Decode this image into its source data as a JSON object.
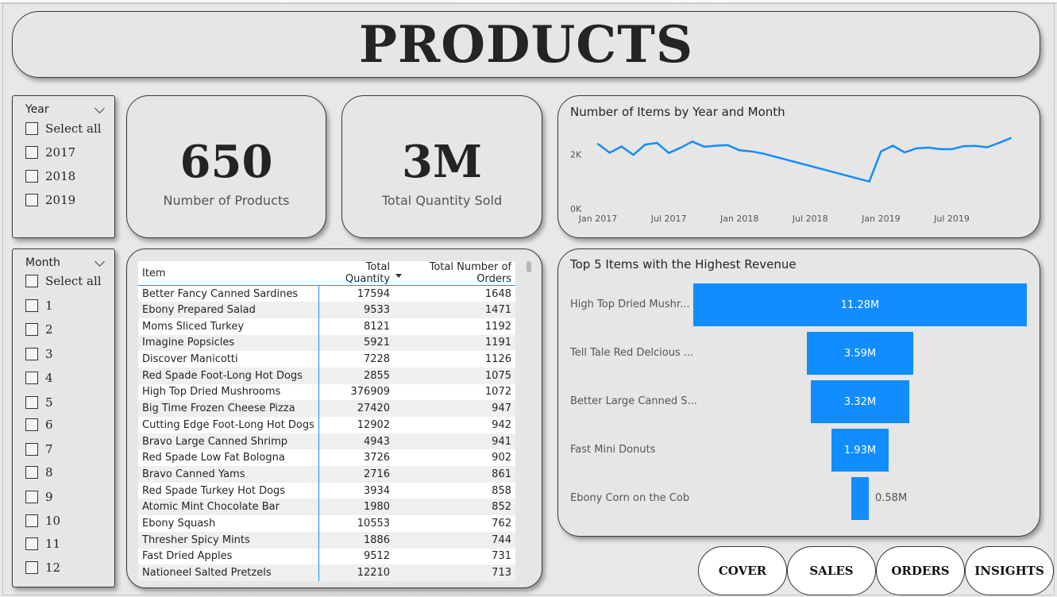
{
  "title": "PRODUCTS",
  "year_slicer": {
    "label": "Year",
    "options": [
      "Select all",
      "2017",
      "2018",
      "2019"
    ]
  },
  "month_slicer": {
    "label": "Month",
    "options": [
      "Select all",
      "1",
      "2",
      "3",
      "4",
      "5",
      "6",
      "7",
      "8",
      "9",
      "10",
      "11",
      "12"
    ]
  },
  "kpis": {
    "products": {
      "value": "650",
      "label": "Number of Products"
    },
    "quantity": {
      "value": "3M",
      "label": "Total Quantity Sold"
    }
  },
  "line_chart": {
    "title": "Number of Items by Year and Month",
    "y_ticks": [
      "0K",
      "2K"
    ],
    "x_ticks": [
      "Jan 2017",
      "Jul 2017",
      "Jan 2018",
      "Jul 2018",
      "Jan 2019",
      "Jul 2019"
    ]
  },
  "table": {
    "columns": [
      "Item",
      "Total Quantity",
      "Total Number of Orders"
    ],
    "rows": [
      [
        "Better Fancy Canned Sardines",
        "17594",
        "1648"
      ],
      [
        "Ebony Prepared Salad",
        "9533",
        "1471"
      ],
      [
        "Moms Sliced Turkey",
        "8121",
        "1192"
      ],
      [
        "Imagine Popsicles",
        "5921",
        "1191"
      ],
      [
        "Discover Manicotti",
        "7228",
        "1126"
      ],
      [
        "Red Spade Foot-Long Hot Dogs",
        "2855",
        "1075"
      ],
      [
        "High Top Dried Mushrooms",
        "376909",
        "1072"
      ],
      [
        "Big Time Frozen Cheese Pizza",
        "27420",
        "947"
      ],
      [
        "Cutting Edge Foot-Long Hot Dogs",
        "12902",
        "942"
      ],
      [
        "Bravo Large Canned Shrimp",
        "4943",
        "941"
      ],
      [
        "Red Spade Low Fat Bologna",
        "3726",
        "902"
      ],
      [
        "Bravo Canned Yams",
        "2716",
        "861"
      ],
      [
        "Red Spade Turkey Hot Dogs",
        "3934",
        "858"
      ],
      [
        "Atomic Mint Chocolate Bar",
        "1980",
        "852"
      ],
      [
        "Ebony Squash",
        "10553",
        "762"
      ],
      [
        "Thresher Spicy Mints",
        "1886",
        "744"
      ],
      [
        "Fast Dried Apples",
        "9512",
        "731"
      ],
      [
        "Nationeel Salted Pretzels",
        "12210",
        "713"
      ]
    ]
  },
  "bar_chart": {
    "title": "Top 5 Items with the Highest Revenue",
    "items": [
      {
        "label": "High Top Dried Mushr...",
        "value_label": "11.28M"
      },
      {
        "label": "Tell Tale Red Delcious ...",
        "value_label": "3.59M"
      },
      {
        "label": "Better Large Canned S...",
        "value_label": "3.32M"
      },
      {
        "label": "Fast Mini Donuts",
        "value_label": "1.93M"
      },
      {
        "label": "Ebony Corn on the Cob",
        "value_label": "0.58M"
      }
    ]
  },
  "chart_data": [
    {
      "type": "line",
      "title": "Number of Items by Year and Month",
      "x": [
        "2017-01",
        "2017-02",
        "2017-03",
        "2017-04",
        "2017-05",
        "2017-06",
        "2017-07",
        "2017-08",
        "2017-09",
        "2017-10",
        "2017-11",
        "2017-12",
        "2018-01",
        "2018-02",
        "2018-03",
        "2018-12",
        "2019-01",
        "2019-02",
        "2019-03",
        "2019-04",
        "2019-05",
        "2019-06",
        "2019-07",
        "2019-08",
        "2019-09",
        "2019-10",
        "2019-11",
        "2019-12"
      ],
      "series": [
        {
          "values": [
            2380,
            2060,
            2290,
            1980,
            2360,
            2420,
            2050,
            2240,
            2470,
            2280,
            2320,
            2340,
            2150,
            2110,
            2030,
            1000,
            2110,
            2320,
            2070,
            2220,
            2250,
            2190,
            2190,
            2300,
            2310,
            2260,
            2420,
            2600
          ]
        }
      ],
      "ylim": [
        0,
        2800
      ],
      "y_ticks": [
        "0K",
        "2K"
      ],
      "x_ticks": [
        "Jan 2017",
        "Jul 2017",
        "Jan 2018",
        "Jul 2018",
        "Jan 2019",
        "Jul 2019"
      ]
    },
    {
      "type": "bar",
      "title": "Top 5 Items with the Highest Revenue",
      "categories": [
        "High Top Dried Mushr...",
        "Tell Tale Red Delcious ...",
        "Better Large Canned S...",
        "Fast Mini Donuts",
        "Ebony Corn on the Cob"
      ],
      "values": [
        11.28,
        3.59,
        3.32,
        1.93,
        0.58
      ],
      "value_labels": [
        "11.28M",
        "3.59M",
        "3.32M",
        "1.93M",
        "0.58M"
      ]
    }
  ],
  "nav": [
    "COVER",
    "SALES",
    "ORDERS",
    "INSIGHTS"
  ],
  "colors": {
    "accent": "#118dff",
    "card": "#e6e6e6",
    "border": "#3a3a3a"
  }
}
